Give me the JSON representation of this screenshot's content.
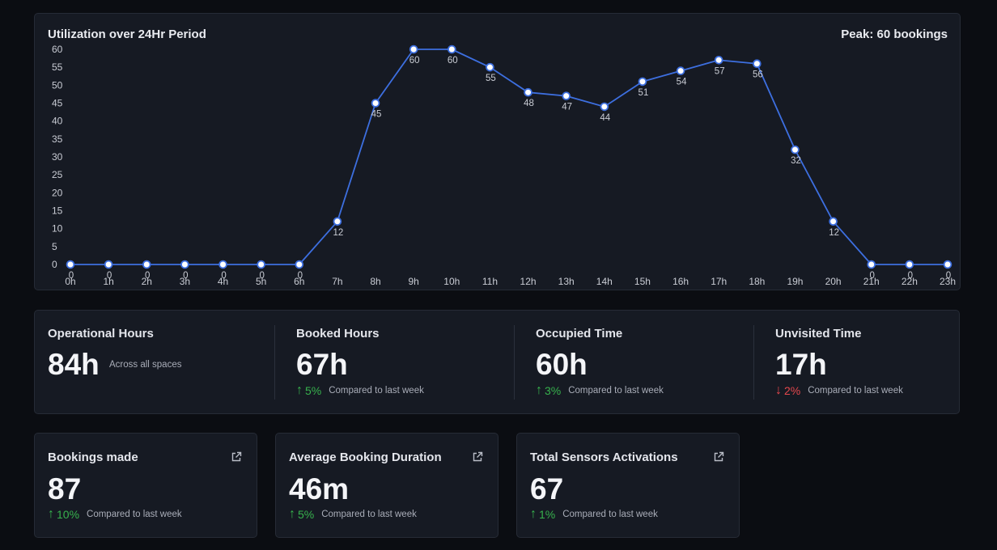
{
  "chart": {
    "title": "Utilization over 24Hr Period",
    "peak_label": "Peak: 60 bookings"
  },
  "chart_data": {
    "type": "line",
    "title": "Utilization over 24Hr Period",
    "categories": [
      "0h",
      "1h",
      "2h",
      "3h",
      "4h",
      "5h",
      "6h",
      "7h",
      "8h",
      "9h",
      "10h",
      "11h",
      "12h",
      "13h",
      "14h",
      "15h",
      "16h",
      "17h",
      "18h",
      "19h",
      "20h",
      "21h",
      "22h",
      "23h"
    ],
    "values": [
      0,
      0,
      0,
      0,
      0,
      0,
      0,
      12,
      45,
      60,
      60,
      55,
      48,
      47,
      44,
      51,
      54,
      57,
      56,
      32,
      12,
      0,
      0,
      0
    ],
    "y_ticks": [
      0,
      5,
      10,
      15,
      20,
      25,
      30,
      35,
      40,
      45,
      50,
      55,
      60
    ],
    "ylim": [
      0,
      60
    ],
    "grid": false,
    "line_color": "#3d6fe0",
    "marker_fill": "#ffffff",
    "legend": "none"
  },
  "stats": [
    {
      "title": "Operational Hours",
      "value": "84h",
      "note": "Across all spaces"
    },
    {
      "title": "Booked Hours",
      "value": "67h",
      "direction": "up",
      "delta": "5%",
      "compare": "Compared to last week"
    },
    {
      "title": "Occupied Time",
      "value": "60h",
      "direction": "up",
      "delta": "3%",
      "compare": "Compared to last week"
    },
    {
      "title": "Unvisited Time",
      "value": "17h",
      "direction": "down",
      "delta": "2%",
      "compare": "Compared to last week"
    }
  ],
  "cards": [
    {
      "title": "Bookings made",
      "value": "87",
      "direction": "up",
      "delta": "10%",
      "compare": "Compared to last week",
      "icon": "external-link-icon"
    },
    {
      "title": "Average Booking Duration",
      "value": "46m",
      "direction": "up",
      "delta": "5%",
      "compare": "Compared to last week",
      "icon": "external-link-icon"
    },
    {
      "title": "Total Sensors Activations",
      "value": "67",
      "direction": "up",
      "delta": "1%",
      "compare": "Compared to last week",
      "icon": "external-link-icon"
    }
  ],
  "colors": {
    "background": "#0b0d12",
    "card": "#161a23",
    "up": "#37b24d",
    "down": "#e5484d",
    "accent": "#3d6fe0"
  }
}
